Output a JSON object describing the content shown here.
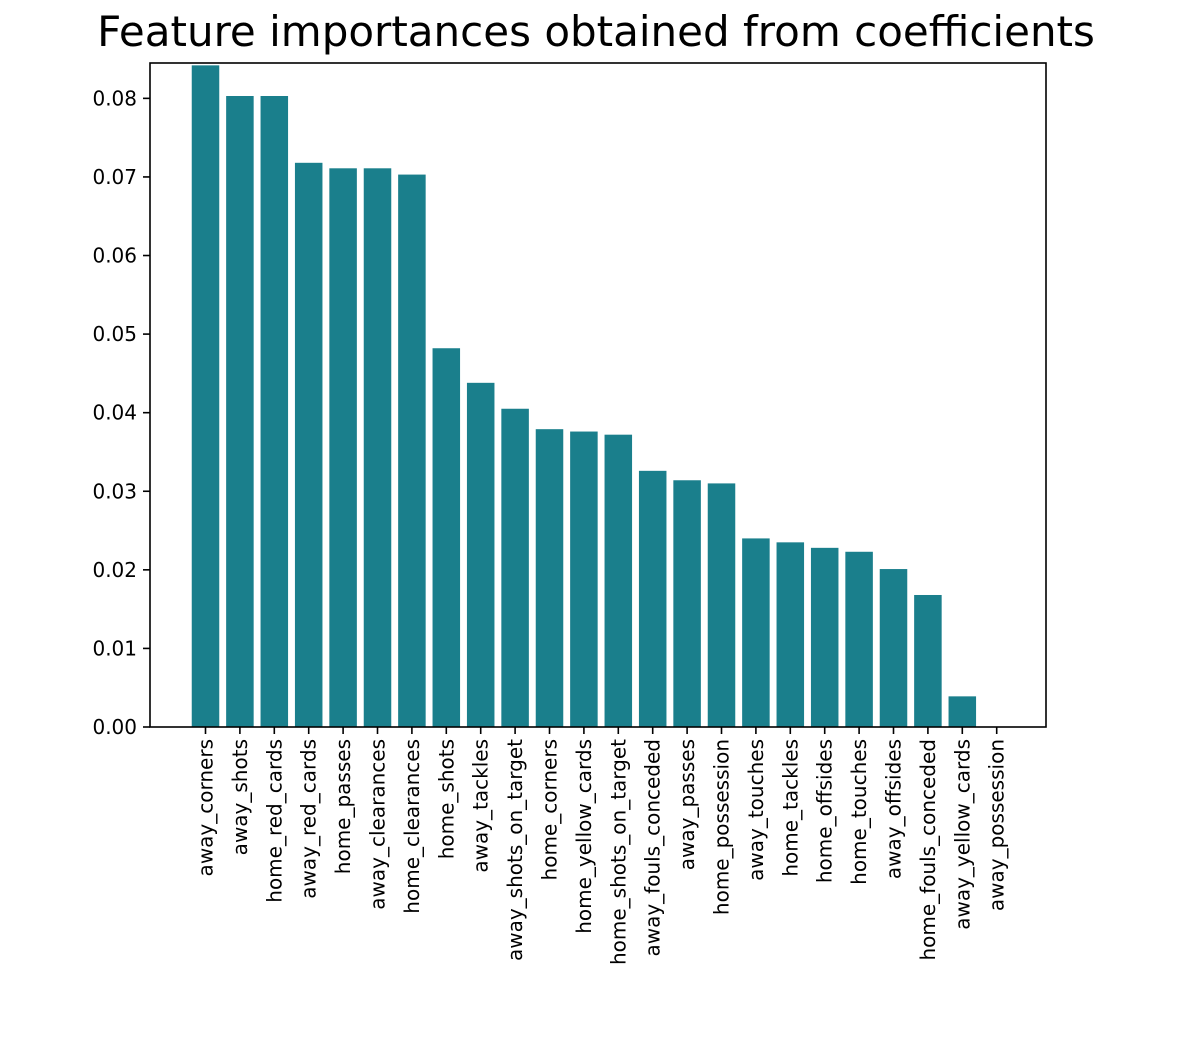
{
  "chart_data": {
    "type": "bar",
    "title": "Feature importances obtained from coefficients",
    "xlabel": "",
    "ylabel": "",
    "ylim": [
      0,
      0.0845
    ],
    "yticks": [
      "0.00",
      "0.01",
      "0.02",
      "0.03",
      "0.04",
      "0.05",
      "0.06",
      "0.07",
      "0.08"
    ],
    "grid": false,
    "legend": "none",
    "bar_color": "#1a7f8c",
    "categories": [
      "away_corners",
      "away_shots",
      "home_red_cards",
      "away_red_cards",
      "home_passes",
      "away_clearances",
      "home_clearances",
      "home_shots",
      "away_tackles",
      "away_shots_on_target",
      "home_corners",
      "home_yellow_cards",
      "home_shots_on_target",
      "away_fouls_conceded",
      "away_passes",
      "home_possession",
      "away_touches",
      "home_tackles",
      "home_offsides",
      "home_touches",
      "away_offsides",
      "home_fouls_conceded",
      "away_yellow_cards",
      "away_possession"
    ],
    "values": [
      0.0842,
      0.0803,
      0.0803,
      0.0718,
      0.0711,
      0.0711,
      0.0703,
      0.0482,
      0.0438,
      0.0405,
      0.0379,
      0.0376,
      0.0372,
      0.0326,
      0.0314,
      0.031,
      0.024,
      0.0235,
      0.0228,
      0.0223,
      0.0201,
      0.0168,
      0.0039,
      0.0
    ]
  }
}
